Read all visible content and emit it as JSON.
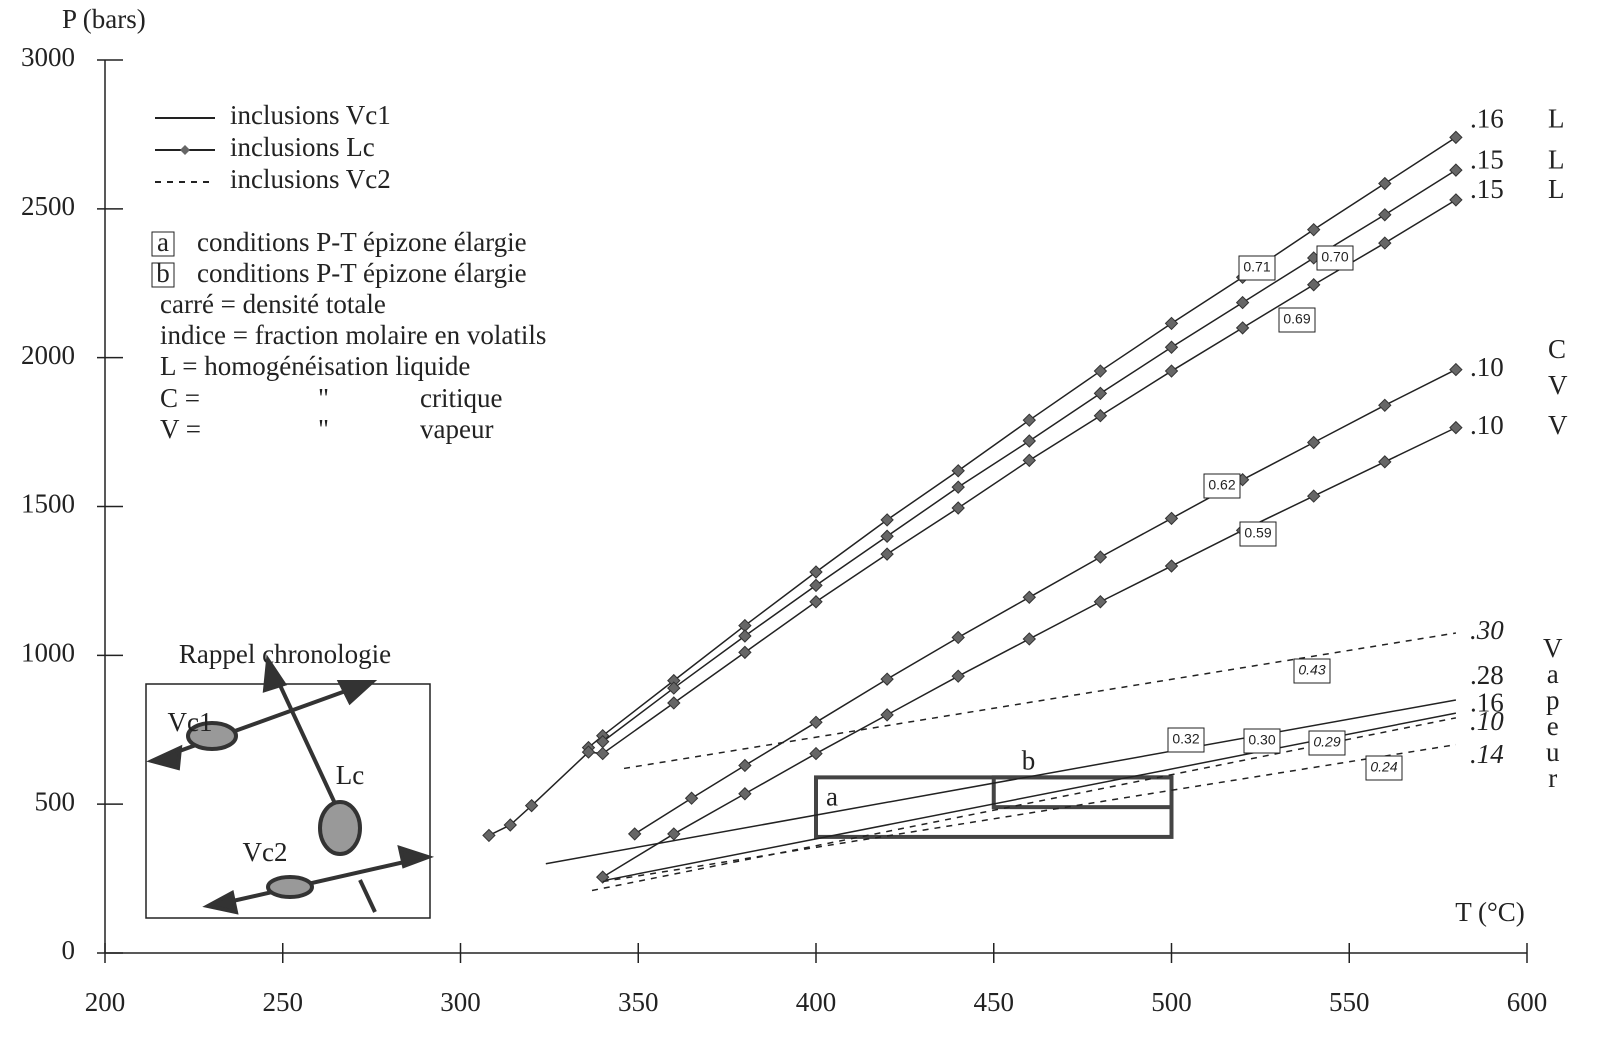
{
  "chart_data": {
    "type": "line",
    "y_label": "P (bars)",
    "x_label": "T (°C)",
    "xlim": [
      200,
      600
    ],
    "xticks": [
      200,
      250,
      300,
      350,
      400,
      450,
      500,
      550,
      600
    ],
    "ylim": [
      0,
      3000
    ],
    "yticks": [
      0,
      500,
      1000,
      1500,
      2000,
      2500,
      3000
    ],
    "color": "#222222",
    "legend": [
      {
        "label": "inclusions Vc1",
        "style": "Vc1"
      },
      {
        "label": "inclusions Lc",
        "style": "Lc"
      },
      {
        "label": "inclusions Vc2",
        "style": "Vc2"
      }
    ],
    "notes": {
      "boxed": [
        {
          "key": "a",
          "text": "conditions P-T épizone élargie"
        },
        {
          "key": "b",
          "text": "conditions P-T épizone élargie"
        }
      ],
      "lines": [
        "carré = densité totale",
        "indice = fraction molaire en volatils",
        "L = homogénéisation liquide"
      ],
      "ditto": [
        [
          "C =",
          "\"",
          "critique"
        ],
        [
          "V =",
          "\"",
          "vapeur"
        ]
      ]
    },
    "series": [
      {
        "style": "Lc",
        "end_label": ".16",
        "phase": [
          "L"
        ],
        "x": [
          336,
          340,
          360,
          380,
          400,
          420,
          440,
          460,
          480,
          500,
          520,
          540,
          560,
          580
        ],
        "values": [
          690,
          730,
          915,
          1100,
          1280,
          1455,
          1620,
          1790,
          1955,
          2115,
          2270,
          2430,
          2585,
          2740
        ]
      },
      {
        "style": "Lc",
        "end_label": ".15",
        "phase": [
          "L"
        ],
        "x": [
          340,
          360,
          380,
          400,
          420,
          440,
          460,
          480,
          500,
          520,
          540,
          560,
          580
        ],
        "values": [
          710,
          890,
          1065,
          1235,
          1400,
          1565,
          1720,
          1880,
          2035,
          2185,
          2335,
          2480,
          2630
        ]
      },
      {
        "style": "Lc",
        "end_label": ".15",
        "phase": [
          "L"
        ],
        "x": [
          308,
          314,
          320,
          336,
          340,
          360,
          380,
          400,
          420,
          440,
          460,
          480,
          500,
          520,
          540,
          560,
          580
        ],
        "values": [
          395,
          430,
          495,
          675,
          670,
          840,
          1010,
          1180,
          1340,
          1495,
          1655,
          1805,
          1955,
          2100,
          2245,
          2385,
          2530
        ]
      },
      {
        "style": "Lc",
        "end_label": ".10",
        "phase": [
          "C",
          "V"
        ],
        "x": [
          349,
          365,
          380,
          400,
          420,
          440,
          460,
          480,
          500,
          520,
          540,
          560,
          580
        ],
        "values": [
          400,
          520,
          630,
          775,
          920,
          1060,
          1195,
          1330,
          1460,
          1590,
          1715,
          1840,
          1960
        ]
      },
      {
        "style": "Lc",
        "end_label": ".10",
        "phase": [
          "V"
        ],
        "x": [
          340,
          360,
          380,
          400,
          420,
          440,
          460,
          480,
          500,
          520,
          540,
          560,
          580
        ],
        "values": [
          255,
          400,
          535,
          670,
          800,
          930,
          1055,
          1180,
          1300,
          1420,
          1535,
          1650,
          1765
        ]
      },
      {
        "style": "Vc1",
        "end_label": ".28",
        "x": [
          324,
          580
        ],
        "values": [
          300,
          850
        ]
      },
      {
        "style": "Vc1",
        "end_label": ".16",
        "x": [
          341,
          580
        ],
        "values": [
          245,
          806
        ]
      },
      {
        "style": "Vc2",
        "end_label": ".30",
        "x": [
          346,
          580
        ],
        "values": [
          620,
          1075
        ]
      },
      {
        "style": "Vc2",
        "end_label": ".10",
        "x": [
          337,
          580
        ],
        "values": [
          210,
          790
        ]
      },
      {
        "style": "Vc2",
        "end_label": ".14",
        "x": [
          340,
          580
        ],
        "values": [
          240,
          700
        ]
      }
    ],
    "vapeur": "Vapeur",
    "densities": [
      "0.71",
      "0.70",
      "0.69",
      "0.62",
      "0.59",
      "0.43",
      "0.32",
      "0.30",
      "0.29",
      "0.24"
    ],
    "regions": [
      {
        "label": "a",
        "xlim": [
          400,
          500
        ],
        "ylim": [
          390,
          590
        ]
      },
      {
        "label": "b",
        "xlim": [
          450,
          500
        ],
        "ylim": [
          490,
          590
        ]
      }
    ],
    "inset": {
      "title": "Rappel chronologie",
      "labels": [
        "Vc1",
        "Lc",
        "Vc2"
      ]
    }
  }
}
